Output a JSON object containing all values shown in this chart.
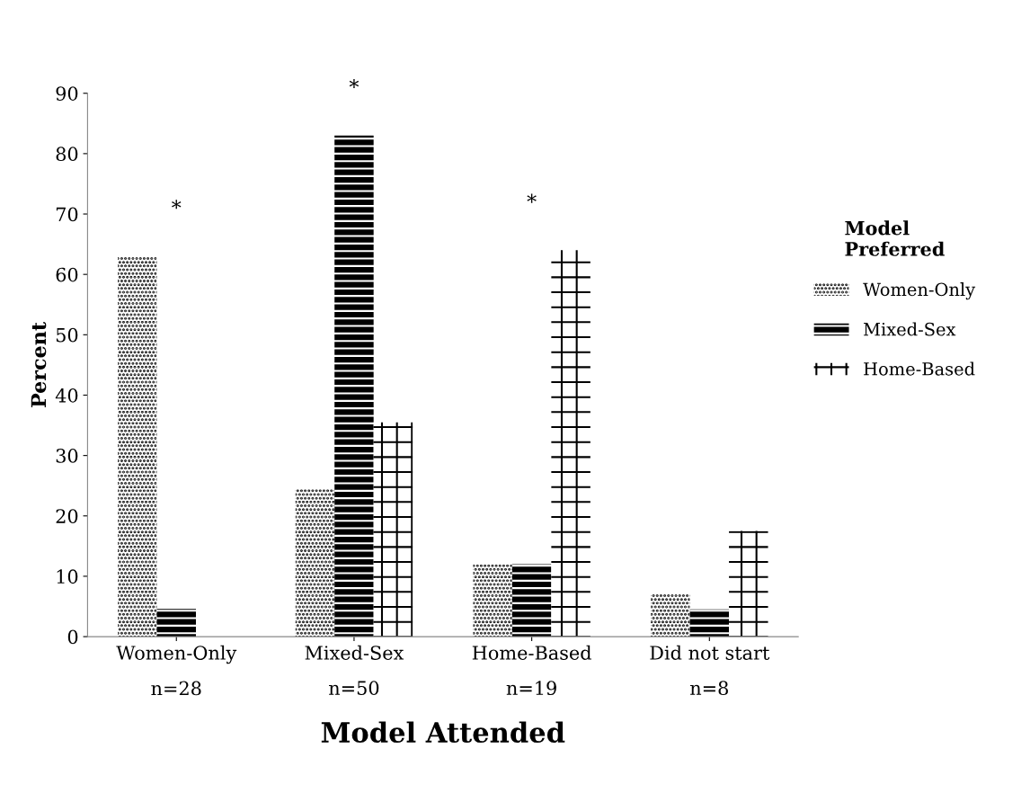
{
  "chart_data": {
    "type": "bar",
    "xlabel": "Model Attended",
    "ylabel": "Percent",
    "legend_title": "Model Preferred",
    "categories": [
      "Women-Only\nn=28",
      "Mixed-Sex\nn=50",
      "Home-Based\nn=19",
      "Did not start\nn=8"
    ],
    "series": [
      {
        "name": "Women-Only",
        "color": "#ffffff",
        "values": [
          63,
          24.5,
          12,
          7
        ]
      },
      {
        "name": "Mixed-Sex",
        "color": "#000000",
        "values": [
          4.6,
          83,
          12,
          4.5
        ]
      },
      {
        "name": "Home-Based",
        "color": "#ffffff",
        "values": [
          null,
          35.5,
          64,
          17.5
        ]
      }
    ],
    "ylim": [
      0,
      90
    ],
    "yticks": [
      0,
      10,
      20,
      30,
      40,
      50,
      60,
      70,
      80,
      90
    ],
    "annotations": [
      "*",
      "*",
      "*"
    ],
    "grid": false,
    "legend": "right"
  }
}
